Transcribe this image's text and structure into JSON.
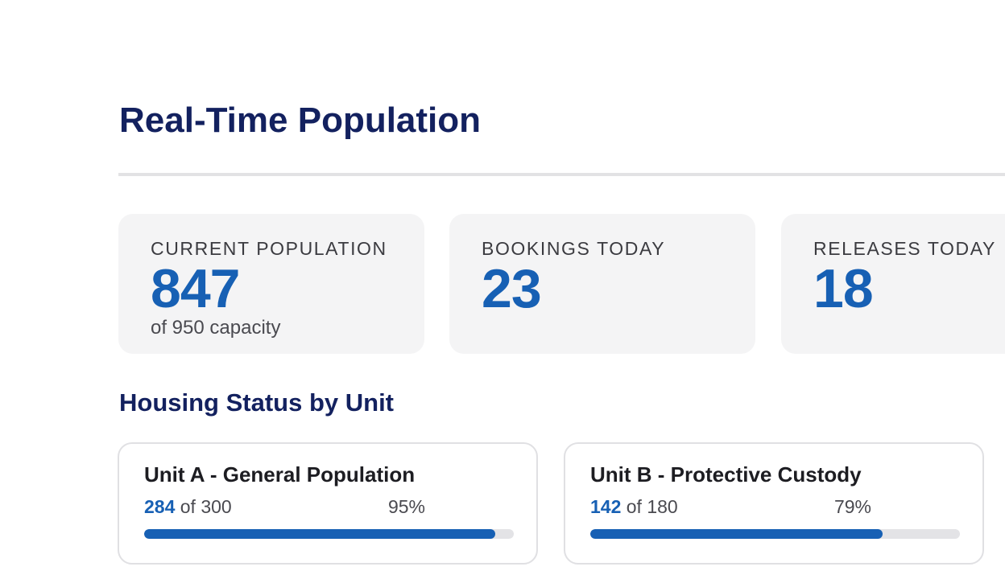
{
  "header": {
    "title": "Real-Time Population"
  },
  "stats": [
    {
      "label": "CURRENT POPULATION",
      "value": "847",
      "sub": "of 950 capacity"
    },
    {
      "label": "BOOKINGS TODAY",
      "value": "23"
    },
    {
      "label": "RELEASES TODAY",
      "value": "18"
    }
  ],
  "housing": {
    "title": "Housing Status by Unit",
    "units": [
      {
        "name": "Unit A - General Population",
        "occupied": "284",
        "of_text": "of 300",
        "percent_label": "95%",
        "fill_fraction": 0.95
      },
      {
        "name": "Unit B - Protective Custody",
        "occupied": "142",
        "of_text": "of 180",
        "percent_label": "79%",
        "fill_fraction": 0.79
      }
    ]
  },
  "colors": {
    "title": "#13215f",
    "accent": "#1760b4",
    "card_bg": "#f4f4f5",
    "track": "#e3e3e6"
  }
}
